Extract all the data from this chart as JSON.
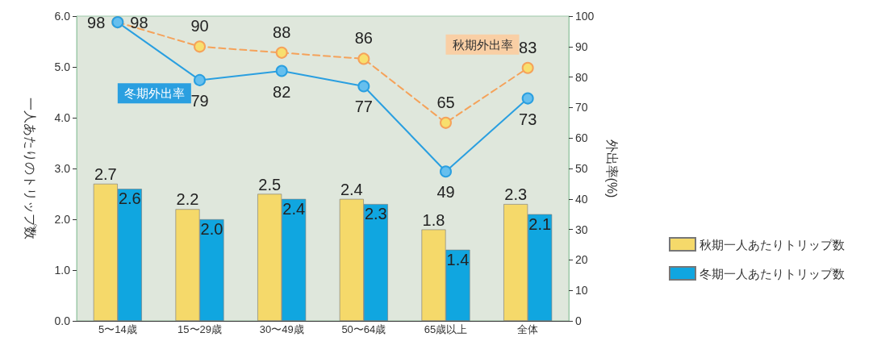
{
  "chart_data": {
    "type": "bar",
    "categories": [
      "5〜14歳",
      "15〜29歳",
      "30〜49歳",
      "50〜64歳",
      "65歳以上",
      "全体"
    ],
    "ylabel": "一人あたりのトリップ数",
    "y2label": "外出率(%)",
    "ylim": [
      0,
      6
    ],
    "yticks": [
      {
        "value": 0,
        "label": "0.0"
      },
      {
        "value": 1,
        "label": "1.0"
      },
      {
        "value": 2,
        "label": "2.0"
      },
      {
        "value": 3,
        "label": "3.0"
      },
      {
        "value": 4,
        "label": "4.0"
      },
      {
        "value": 5,
        "label": "5.0"
      },
      {
        "value": 6,
        "label": "6.0"
      }
    ],
    "y2lim": [
      0,
      100
    ],
    "y2ticks": [
      0,
      10,
      20,
      30,
      40,
      50,
      60,
      70,
      80,
      90,
      100
    ],
    "grid": false,
    "legend": "bottom right",
    "marker": "circle",
    "series": [
      {
        "name": "秋期一人あたりトリップ数",
        "color": "#f5d96a",
        "values": [
          2.7,
          2.2,
          2.5,
          2.4,
          1.8,
          2.3
        ],
        "value_labels": [
          "2.7",
          "2.2",
          "2.5",
          "2.4",
          "1.8",
          "2.3"
        ]
      },
      {
        "name": "冬期一人あたりトリップ数",
        "color": "#10a6e0",
        "values": [
          2.6,
          2.0,
          2.4,
          2.3,
          1.4,
          2.1
        ],
        "value_labels": [
          "2.6",
          "2.0",
          "2.4",
          "2.3",
          "1.4",
          "2.1"
        ]
      },
      {
        "name": "秋期外出率",
        "type": "line",
        "axis": "y2",
        "line_style": "dashed",
        "color": "#f5a25a",
        "values": [
          98,
          90,
          88,
          86,
          65,
          83
        ],
        "value_labels": [
          "98",
          "90",
          "88",
          "86",
          "65",
          "83"
        ]
      },
      {
        "name": "冬期外出率",
        "type": "line",
        "axis": "y2",
        "line_style": "solid",
        "color": "#2a9fe0",
        "values": [
          98,
          79,
          82,
          77,
          49,
          73
        ],
        "value_labels": [
          "98",
          "79",
          "82",
          "77",
          "49",
          "73"
        ]
      }
    ]
  }
}
